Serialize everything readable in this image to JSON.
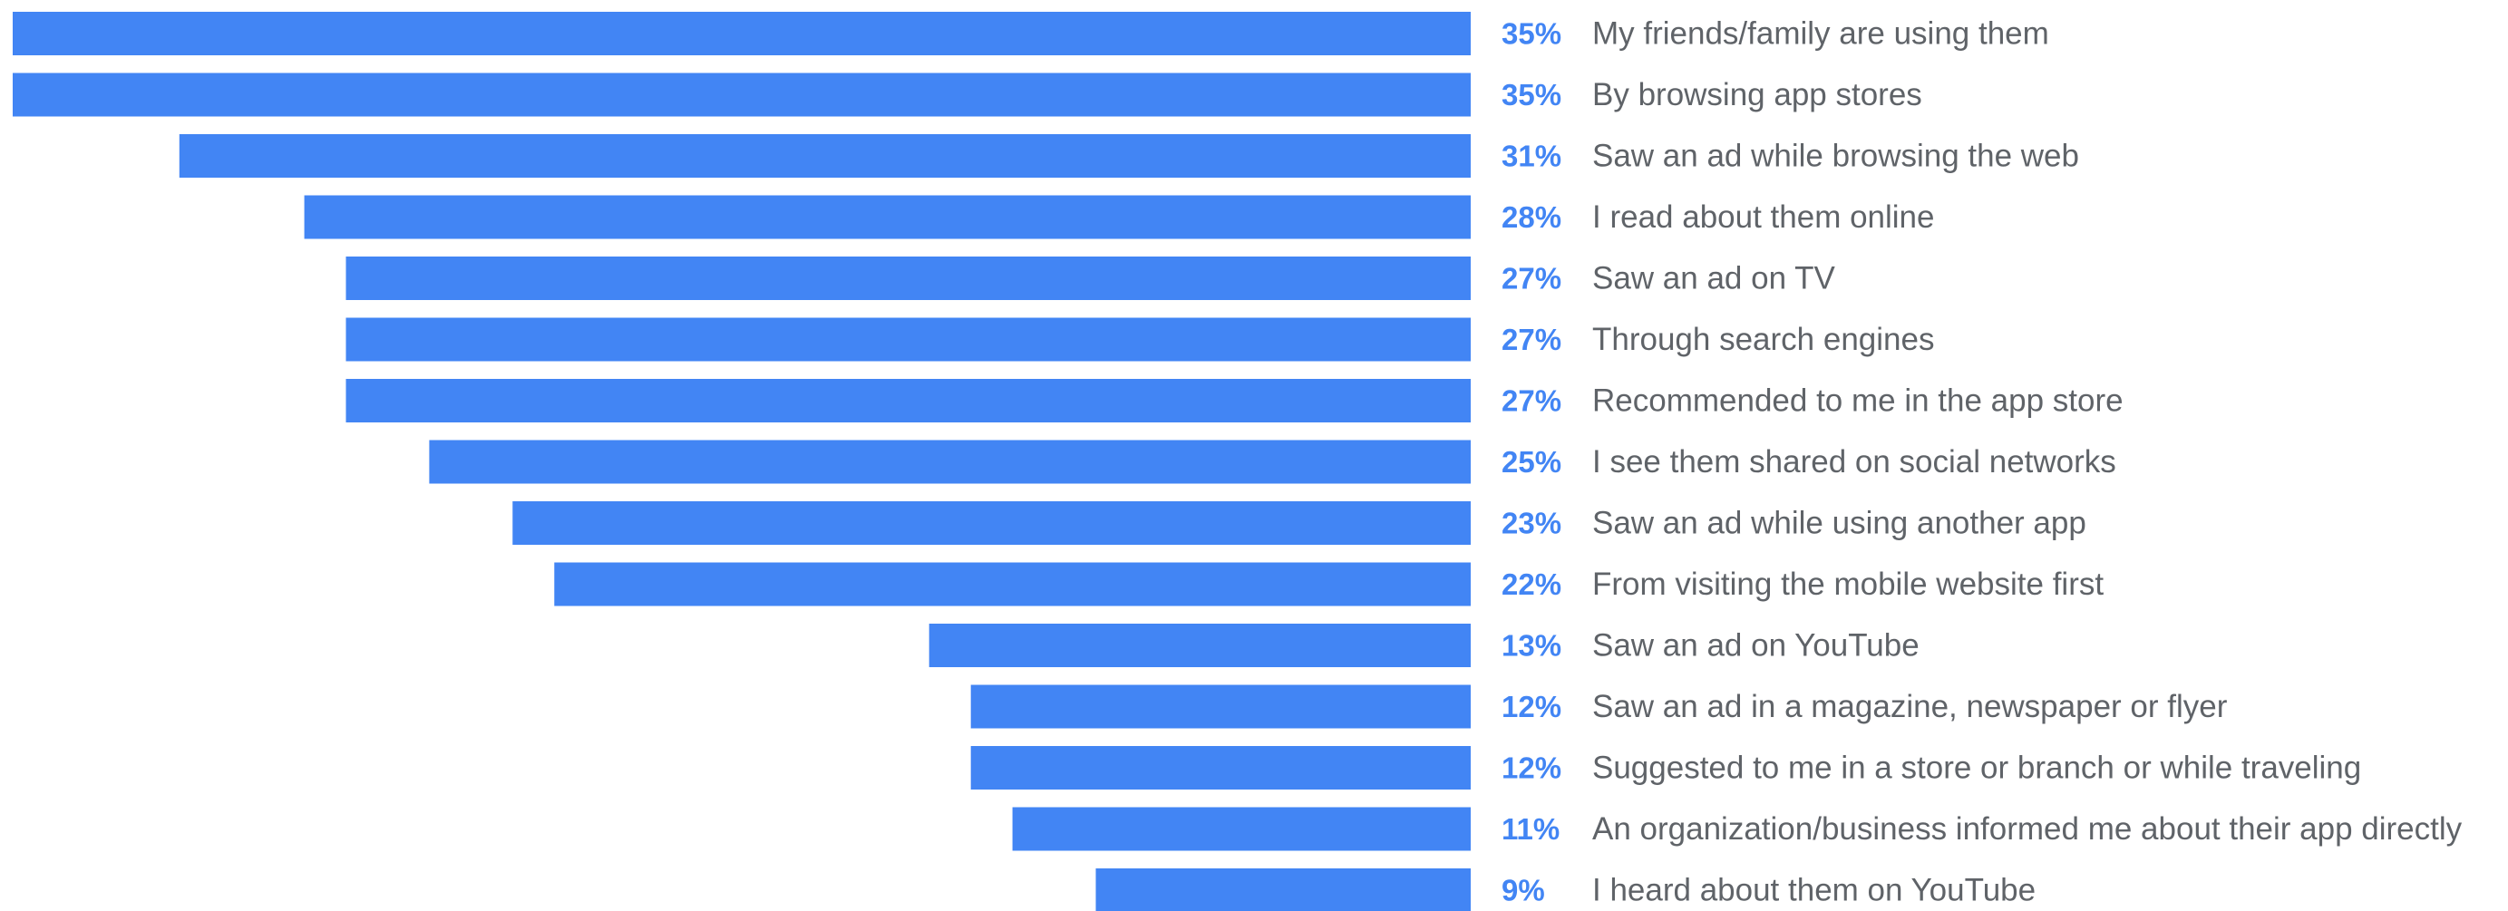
{
  "chart_data": {
    "type": "bar",
    "orientation": "horizontal",
    "bar_color": "#4285F4",
    "value_label_color": "#4285F4",
    "category_label_color": "#5F6368",
    "value_suffix": "%",
    "categories": [
      "My friends/family are using them",
      "By browsing app stores",
      "Saw an ad while browsing the web",
      "I read about them online",
      "Saw an ad on TV",
      "Through search engines",
      "Recommended to me in the app store",
      "I see them shared on social networks",
      "Saw an ad while using another app",
      "From visiting the mobile website first",
      "Saw an ad on YouTube",
      "Saw an ad in a magazine, newspaper or flyer",
      "Suggested to me in a store or branch or while traveling",
      "An organization/business informed me about their app directly",
      "I heard about them on YouTube"
    ],
    "values": [
      35,
      35,
      31,
      28,
      27,
      27,
      27,
      25,
      23,
      22,
      13,
      12,
      12,
      11,
      9
    ],
    "value_labels": [
      "35%",
      "35%",
      "31%",
      "28%",
      "27%",
      "27%",
      "27%",
      "25%",
      "23%",
      "22%",
      "13%",
      "12%",
      "12%",
      "11%",
      "9%"
    ],
    "xlim": [
      0,
      35
    ]
  }
}
